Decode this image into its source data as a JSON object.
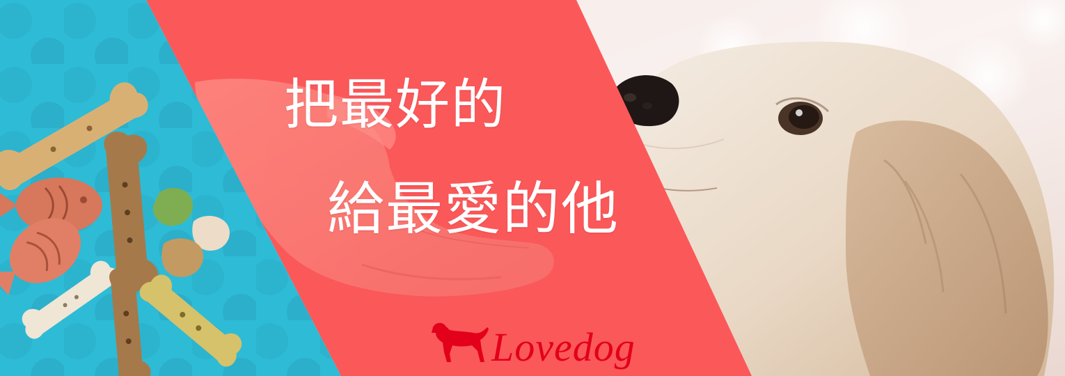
{
  "banner": {
    "headline_line1": "把最好的",
    "headline_line2": "給最愛的他",
    "brand_name": "Lovedog",
    "icons": {
      "brand": "dog-silhouette-icon",
      "treats": "dog-biscuit-icon",
      "hand": "open-hand-icon",
      "puppy": "puppy-photo"
    },
    "colors": {
      "left_panel": "#2ebbd6",
      "middle_panel": "#fb585a",
      "brand": "#e3001a",
      "headline": "#ffffff"
    }
  }
}
